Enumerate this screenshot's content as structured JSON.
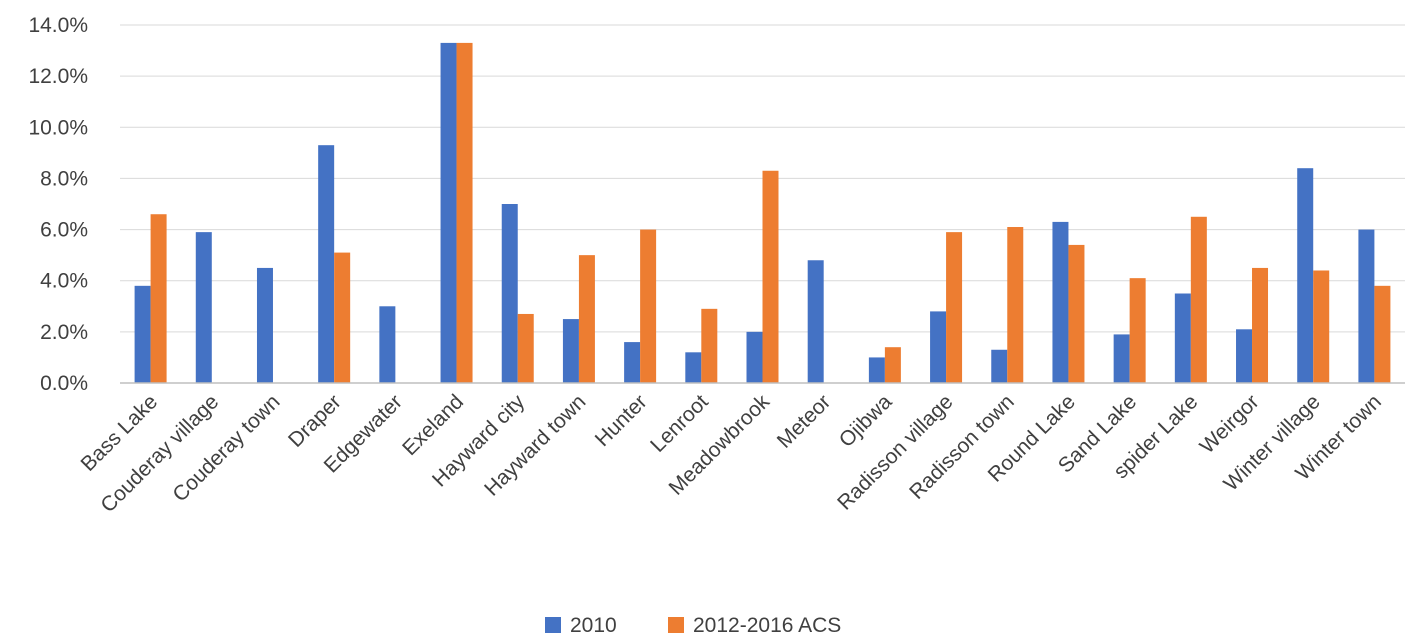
{
  "chart_data": {
    "type": "bar",
    "title": "",
    "xlabel": "",
    "ylabel": "",
    "ylim": [
      0,
      0.14
    ],
    "y_tick_format": "percent_1dp",
    "y_ticks": [
      0,
      0.02,
      0.04,
      0.06,
      0.08,
      0.1,
      0.12,
      0.14
    ],
    "y_tick_labels": [
      "0.0%",
      "2.0%",
      "4.0%",
      "6.0%",
      "8.0%",
      "10.0%",
      "12.0%",
      "14.0%"
    ],
    "grid": "horizontal",
    "legend_position": "bottom-center",
    "categories": [
      "Bass Lake",
      "Couderay village",
      "Couderay town",
      "Draper",
      "Edgewater",
      "Exeland",
      "Hayward city",
      "Hayward town",
      "Hunter",
      "Lenroot",
      "Meadowbrook",
      "Meteor",
      "Ojibwa",
      "Radisson village",
      "Radisson town",
      "Round Lake",
      "Sand Lake",
      "spider Lake",
      "Weirgor",
      "Winter village",
      "Winter town"
    ],
    "series": [
      {
        "name": "2010",
        "color": "#4472c4",
        "values": [
          0.038,
          0.059,
          0.045,
          0.093,
          0.03,
          0.133,
          0.07,
          0.025,
          0.016,
          0.012,
          0.02,
          0.048,
          0.01,
          0.028,
          0.013,
          0.063,
          0.019,
          0.035,
          0.021,
          0.084,
          0.06
        ]
      },
      {
        "name": "2012-2016 ACS",
        "color": "#ed7d31",
        "values": [
          0.066,
          0.0,
          0.0,
          0.051,
          0.0,
          0.133,
          0.027,
          0.05,
          0.06,
          0.029,
          0.083,
          0.0,
          0.014,
          0.059,
          0.061,
          0.054,
          0.041,
          0.065,
          0.045,
          0.044,
          0.038
        ]
      }
    ]
  }
}
